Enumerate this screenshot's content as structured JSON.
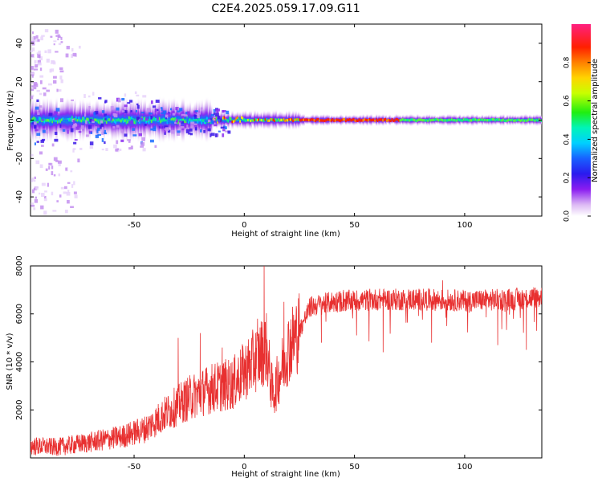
{
  "title": "C2E4.2025.059.17.09.G11",
  "colors": {
    "snr_line": "#e83030",
    "frame": "#000000",
    "background": "#ffffff"
  },
  "chart_data": [
    {
      "type": "heatmap",
      "xlabel": "Height of straight line (km)",
      "ylabel": "Frequency (Hz)",
      "xlim": [
        -97,
        135
      ],
      "ylim": [
        -50,
        50
      ],
      "x_ticks": [
        -50,
        0,
        50,
        100
      ],
      "y_ticks": [
        -40,
        -20,
        0,
        20,
        40
      ],
      "colorbar": {
        "label": "Normalized spectral amplitude",
        "range": [
          0,
          1
        ],
        "ticks": [
          "0.0",
          "0.2",
          "0.4",
          "0.6",
          "0.8"
        ],
        "colormap": "rainbow (white - purple - blue - cyan - green - yellow - orange - red - magenta)"
      },
      "grid": false,
      "description_values": {
        "ridge_frequency_hz": 0,
        "ridge_spread_hz": [
          {
            "x_from": -97,
            "x_to": -15,
            "spread": 9
          },
          {
            "x_from": -15,
            "x_to": 25,
            "spread": 4
          },
          {
            "x_from": 25,
            "x_to": 135,
            "spread": 2.5
          }
        ]
      }
    },
    {
      "type": "line",
      "xlabel": "Height of straight line (km)",
      "ylabel": "SNR (10 * v/v)",
      "xlim": [
        -97,
        135
      ],
      "ylim": [
        0,
        8000
      ],
      "x_ticks": [
        -50,
        0,
        50,
        100
      ],
      "y_ticks": [
        2000,
        4000,
        6000,
        8000
      ],
      "grid": false,
      "trend": {
        "x": [
          -97,
          -85,
          -70,
          -55,
          -45,
          -35,
          -25,
          -15,
          -5,
          0,
          5,
          10,
          13,
          20,
          25,
          30,
          40,
          50,
          60,
          80,
          100,
          120,
          135
        ],
        "y": [
          500,
          450,
          650,
          900,
          1200,
          1900,
          2500,
          2900,
          3100,
          3600,
          4100,
          4600,
          2600,
          4600,
          5300,
          6300,
          6500,
          6550,
          6600,
          6600,
          6550,
          6600,
          6700
        ]
      },
      "spikes": [
        {
          "x": -30,
          "y": 5000
        },
        {
          "x": -20,
          "y": 5200
        },
        {
          "x": -10,
          "y": 4600
        },
        {
          "x": 6,
          "y": 5800
        },
        {
          "x": 9,
          "y": 8000
        },
        {
          "x": 18,
          "y": 6500
        },
        {
          "x": 45,
          "y": 7000
        },
        {
          "x": 90,
          "y": 7400
        }
      ],
      "dips": [
        {
          "x": 35,
          "y": 4800
        },
        {
          "x": 63,
          "y": 4400
        },
        {
          "x": 85,
          "y": 4800
        },
        {
          "x": 115,
          "y": 4700
        },
        {
          "x": 128,
          "y": 4500
        }
      ]
    }
  ]
}
